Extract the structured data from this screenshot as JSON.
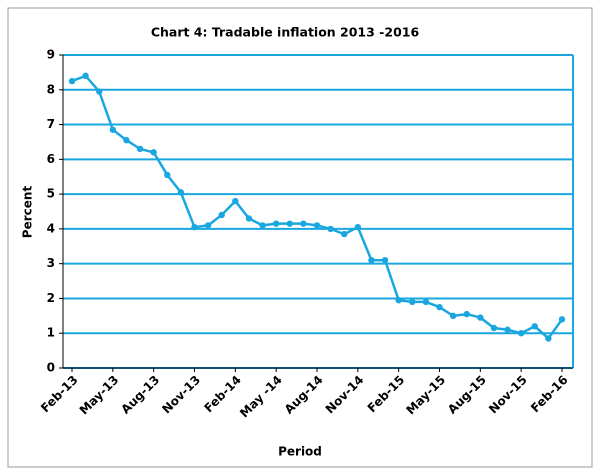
{
  "chart_data": {
    "type": "line",
    "title": "Chart 4: Tradable inflation 2013 -2016",
    "xlabel": "Period",
    "ylabel": "Percent",
    "categories": [
      "Feb-13",
      null,
      null,
      "May-13",
      null,
      null,
      "Aug-13",
      null,
      null,
      "Nov-13",
      null,
      null,
      "Feb-14",
      null,
      null,
      "May -14",
      null,
      null,
      "Aug-14",
      null,
      null,
      "Nov-14",
      null,
      null,
      "Feb-15",
      null,
      null,
      "May-15",
      null,
      null,
      "Aug-15",
      null,
      null,
      "Nov-15",
      null,
      null,
      "Feb-16"
    ],
    "values": [
      8.25,
      8.4,
      7.95,
      6.85,
      6.55,
      6.3,
      6.2,
      5.55,
      5.05,
      4.05,
      4.1,
      4.4,
      4.8,
      4.3,
      4.1,
      4.15,
      4.15,
      4.15,
      4.1,
      4.0,
      3.85,
      4.05,
      3.1,
      3.1,
      1.95,
      1.9,
      1.9,
      1.75,
      1.5,
      1.55,
      1.45,
      1.15,
      1.1,
      1.0,
      1.2,
      0.85,
      1.4
    ],
    "color": "#1aa7e0",
    "ylim": [
      0,
      9
    ],
    "yticks": [
      0,
      1,
      2,
      3,
      4,
      5,
      6,
      7,
      8,
      9
    ],
    "grid": true
  }
}
